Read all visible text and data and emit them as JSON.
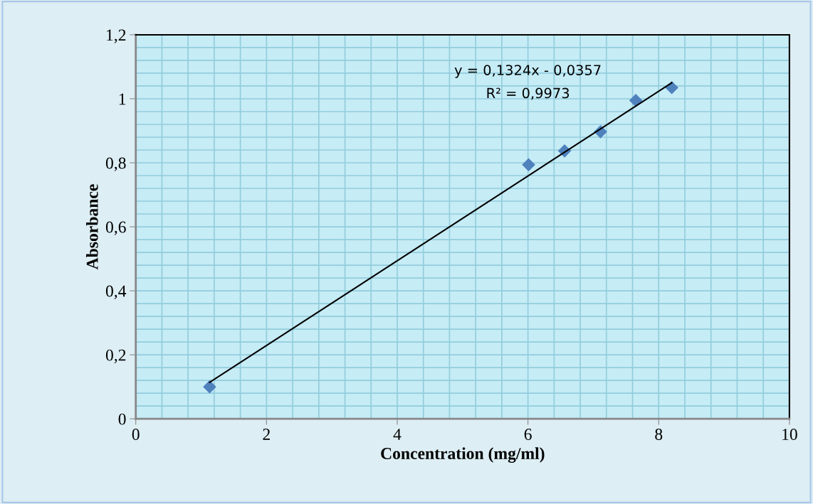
{
  "chart_data": {
    "type": "scatter",
    "xlabel": "Concentration (mg/ml)",
    "ylabel": "Absorbance",
    "series": [
      {
        "color": "#4f81bd",
        "marker": "diamond",
        "x": [
          1.13,
          6.01,
          6.56,
          7.11,
          7.65,
          8.2
        ],
        "values": [
          0.1,
          0.794,
          0.837,
          0.897,
          0.995,
          1.035
        ]
      },
      {
        "type": "line",
        "color": "#000000",
        "marker": "none",
        "line_style": "solid",
        "x": [
          1.13,
          8.2
        ],
        "values": [
          0.114,
          1.05
        ]
      }
    ],
    "annotations": [
      "y = 0,1324x - 0,0357",
      "R² = 0,9973"
    ],
    "xlim": [
      0,
      10
    ],
    "ylim": [
      0,
      1.2
    ],
    "xticks": [
      0,
      2,
      4,
      6,
      8,
      10
    ],
    "yticks": [
      0,
      {
        "value": 0.2,
        "label": "0,2"
      },
      {
        "value": 0.4,
        "label": "0,4"
      },
      {
        "value": 0.6,
        "label": "0,6"
      },
      {
        "value": 0.8,
        "label": "0,8"
      },
      1,
      {
        "value": 1.2,
        "label": "1,2"
      }
    ],
    "grid": true,
    "legend": false
  }
}
